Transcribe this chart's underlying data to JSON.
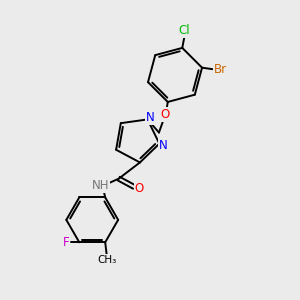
{
  "background_color": "#ebebeb",
  "bond_color": "#000000",
  "bond_width": 1.4,
  "atoms": {
    "Cl": {
      "color": "#00bb00"
    },
    "Br": {
      "color": "#cc6600"
    },
    "O": {
      "color": "#ff0000"
    },
    "N": {
      "color": "#0000ff"
    },
    "H": {
      "color": "#777777"
    },
    "F": {
      "color": "#cc00cc"
    },
    "C": {
      "color": "#000000"
    }
  },
  "figsize": [
    3.0,
    3.0
  ],
  "dpi": 100
}
